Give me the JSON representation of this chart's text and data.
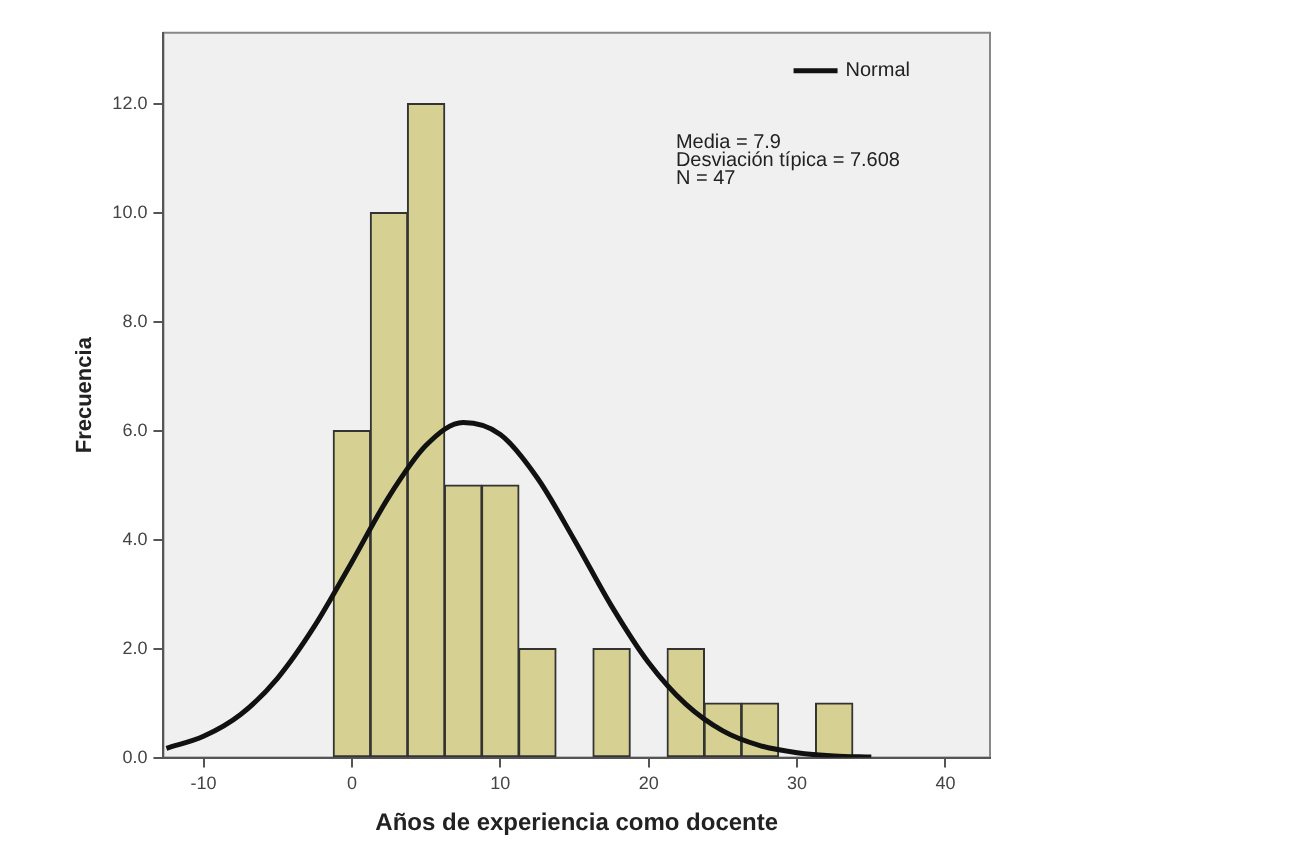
{
  "chart_data": {
    "type": "histogram",
    "xlabel": "Años de experiencia como docente",
    "ylabel": "Frecuencia",
    "bins": [
      -1.25,
      1.25,
      3.75,
      6.25,
      8.75,
      11.25,
      13.75,
      16.25,
      18.75,
      21.25,
      23.75,
      26.25,
      28.75,
      31.25,
      33.75
    ],
    "values": [
      6,
      10,
      12,
      5,
      5,
      2,
      0,
      2,
      0,
      2,
      1,
      1,
      0,
      1
    ],
    "color": "#d6d192",
    "series": [
      {
        "name": "Normal",
        "type": "line",
        "color": "#111111",
        "x": [
          -12.5,
          -10,
          -7.5,
          -5,
          -2.5,
          0,
          2.5,
          5,
          7.5,
          10,
          12.5,
          15,
          17.5,
          20,
          22.5,
          25,
          27.5,
          30,
          32.5,
          35
        ],
        "values": [
          0.17,
          0.39,
          0.79,
          1.46,
          2.42,
          3.59,
          4.79,
          5.73,
          6.15,
          5.93,
          5.13,
          3.99,
          2.78,
          1.74,
          0.98,
          0.49,
          0.22,
          0.09,
          0.03,
          0.01
        ]
      }
    ],
    "annotations": [
      "Media = 7.9",
      "Desviación típica = 7.608",
      "N = 47"
    ],
    "xlim": [
      -12.7,
      43
    ],
    "xticks": [
      -10,
      0,
      10,
      20,
      30,
      40
    ],
    "ylim": [
      0,
      13.3
    ],
    "yticks": [
      {
        "value": 0,
        "label": "0.0"
      },
      {
        "value": 2,
        "label": "2.0"
      },
      {
        "value": 4,
        "label": "4.0"
      },
      {
        "value": 6,
        "label": "6.0"
      },
      {
        "value": 8,
        "label": "8.0"
      },
      {
        "value": 10,
        "label": "10.0"
      },
      {
        "value": 12,
        "label": "12.0"
      }
    ],
    "legend": "top right",
    "marker": "none",
    "line_style": "solid"
  }
}
